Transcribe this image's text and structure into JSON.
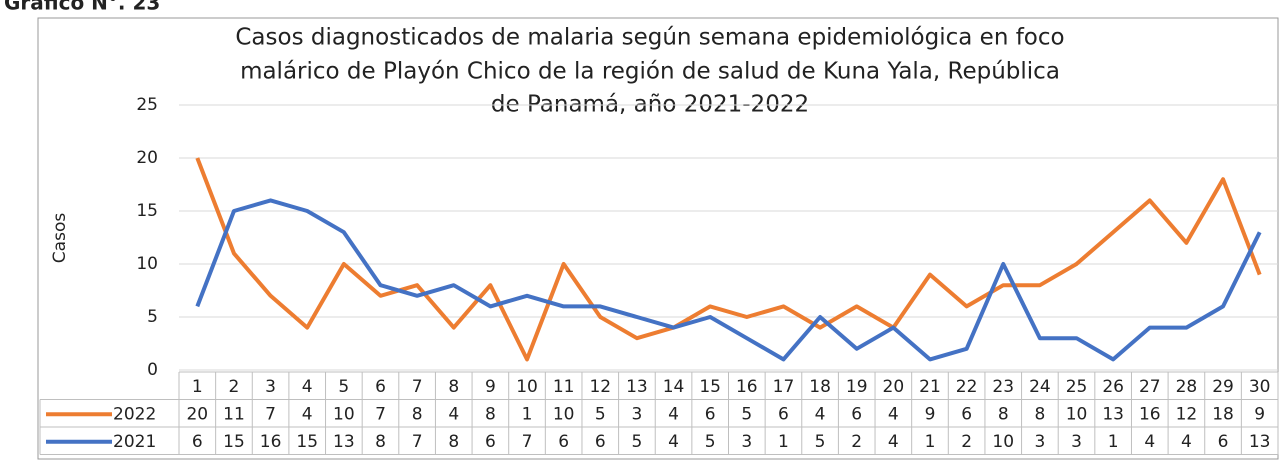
{
  "caption": "Gráfico N°. 23",
  "chart_data": {
    "type": "line",
    "title": [
      "Casos diagnosticados de malaria según semana epidemiológica en foco",
      "malárico de Playón Chico de la región de salud de Kuna Yala, República",
      "de Panamá, año 2021-2022"
    ],
    "y_label": "Casos",
    "categories": [
      1,
      2,
      3,
      4,
      5,
      6,
      7,
      8,
      9,
      10,
      11,
      12,
      13,
      14,
      15,
      16,
      17,
      18,
      19,
      20,
      21,
      22,
      23,
      24,
      25,
      26,
      27,
      28,
      29,
      30
    ],
    "series": [
      {
        "name": "2022",
        "color": "#ed7d31",
        "values": [
          20,
          11,
          7,
          4,
          10,
          7,
          8,
          4,
          8,
          1,
          10,
          5,
          3,
          4,
          6,
          5,
          6,
          4,
          6,
          4,
          9,
          6,
          8,
          8,
          10,
          13,
          16,
          12,
          18,
          9
        ]
      },
      {
        "name": "2021",
        "color": "#4472c4",
        "values": [
          6,
          15,
          16,
          15,
          13,
          8,
          7,
          8,
          6,
          7,
          6,
          6,
          5,
          4,
          5,
          3,
          1,
          5,
          2,
          4,
          1,
          2,
          10,
          3,
          3,
          1,
          4,
          4,
          6,
          13
        ]
      }
    ],
    "ylim": [
      0,
      25
    ],
    "yticks": [
      0,
      5,
      10,
      15,
      20,
      25
    ],
    "grid": true,
    "data_table": true
  }
}
